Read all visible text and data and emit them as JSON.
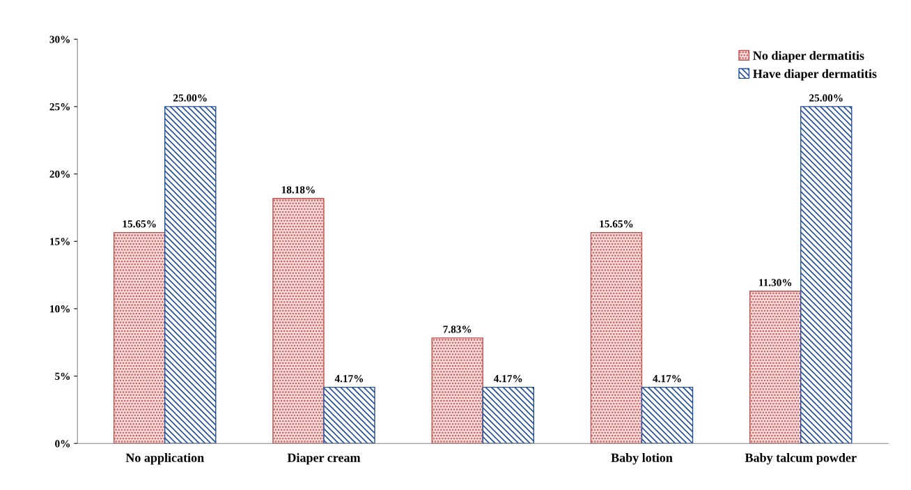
{
  "chart_data": {
    "type": "bar",
    "categories": [
      "No application",
      "Diaper cream",
      null,
      "Baby lotion",
      "Baby talcum powder"
    ],
    "series": [
      {
        "name": "No diaper dermatitis",
        "color": "#c0504d",
        "values": [
          15.65,
          18.18,
          7.83,
          15.65,
          11.3
        ],
        "value_labels": [
          "15.65%",
          "18.18%",
          "7.83%",
          "15.65%",
          "11.30%"
        ]
      },
      {
        "name": "Have diaper dermatitis",
        "color": "#1f4e9c",
        "values": [
          25.0,
          4.17,
          4.17,
          4.17,
          25.0
        ],
        "value_labels": [
          "25.00%",
          "4.17%",
          "4.17%",
          "4.17%",
          "25.00%"
        ]
      }
    ],
    "ylim": [
      0,
      30
    ],
    "yticks": [
      {
        "value": 0,
        "label": "0%"
      },
      {
        "value": 5,
        "label": "5%"
      },
      {
        "value": 10,
        "label": "10%"
      },
      {
        "value": 15,
        "label": "15%"
      },
      {
        "value": 20,
        "label": "20%"
      },
      {
        "value": 25,
        "label": "25%"
      },
      {
        "value": 30,
        "label": "30%"
      }
    ],
    "grid": false,
    "legend": "top right"
  }
}
